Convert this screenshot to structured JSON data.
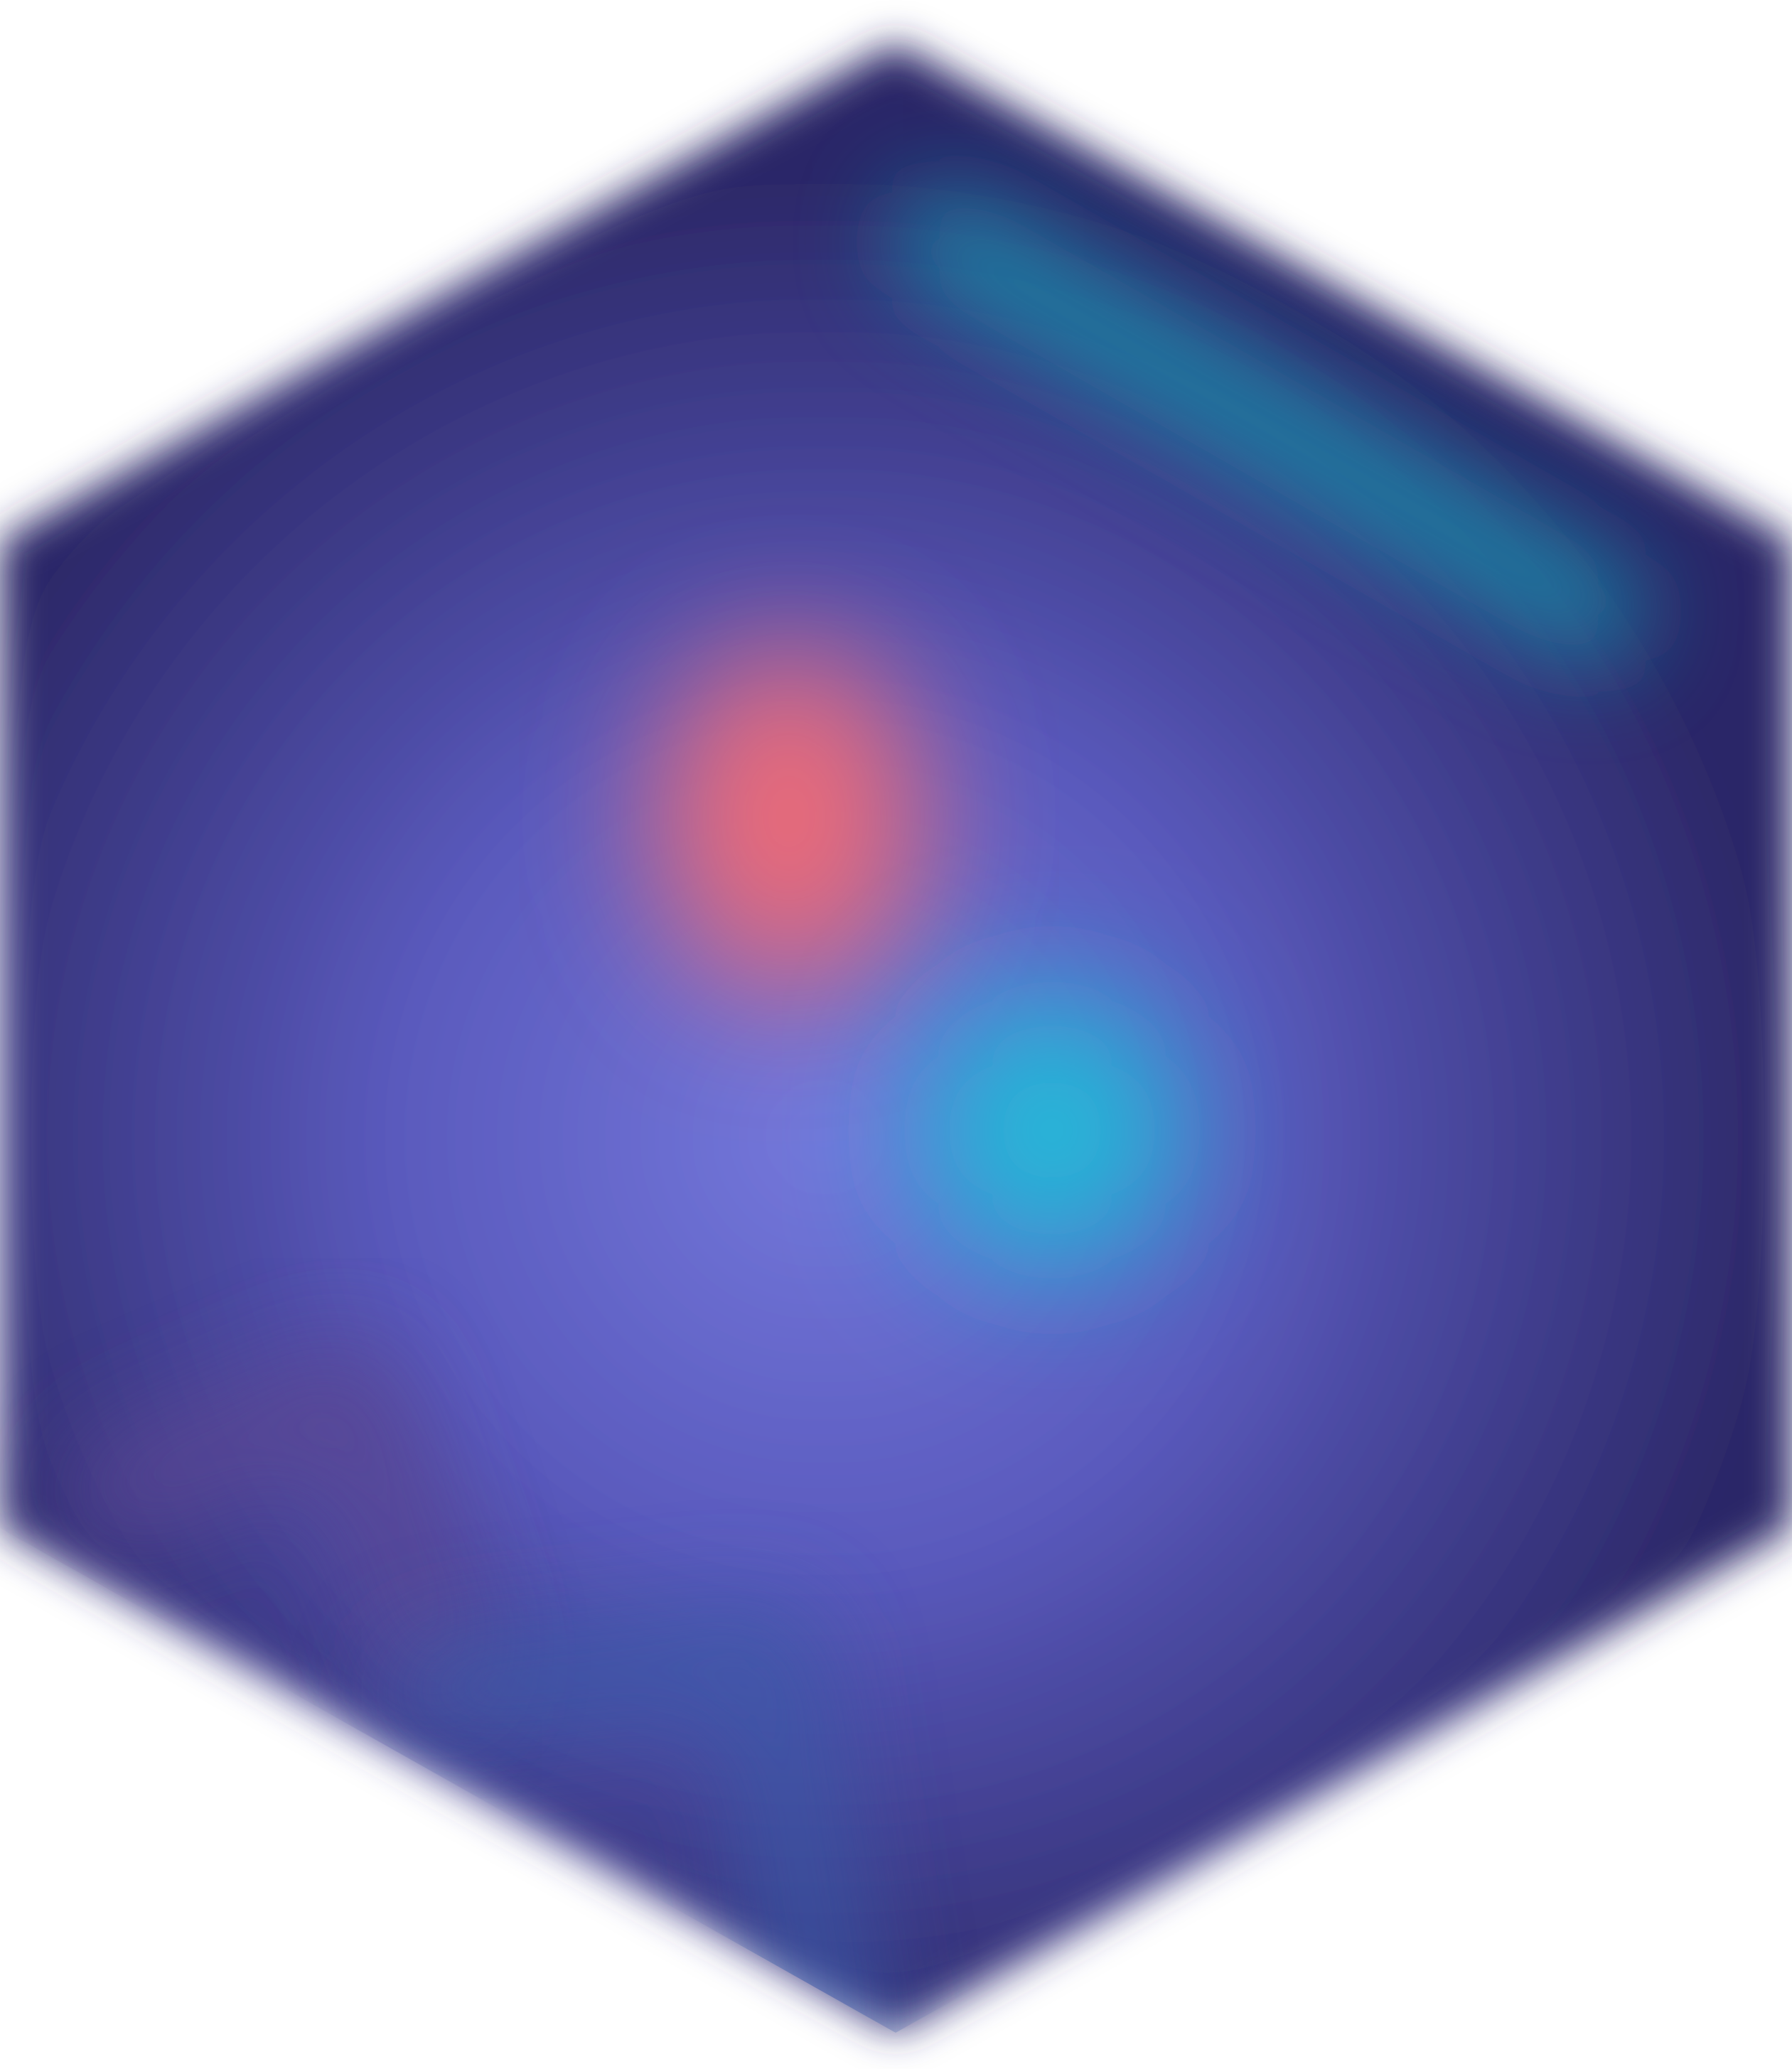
{
  "artwork": {
    "shape": "hexagon",
    "icon": "blurred-hexagon-logo-icon",
    "colors": {
      "background": "#ffffff",
      "hex_center": "#7478db",
      "hex_mid": "#5a5abd",
      "hex_edge": "#2c2868",
      "coral_blob": "#ea6a78",
      "cyan_blob": "#22b8d8",
      "teal_stripe": "#1e86a8",
      "purple_chevron": "#5a4694",
      "blue_bar": "#3a5aa8"
    }
  }
}
